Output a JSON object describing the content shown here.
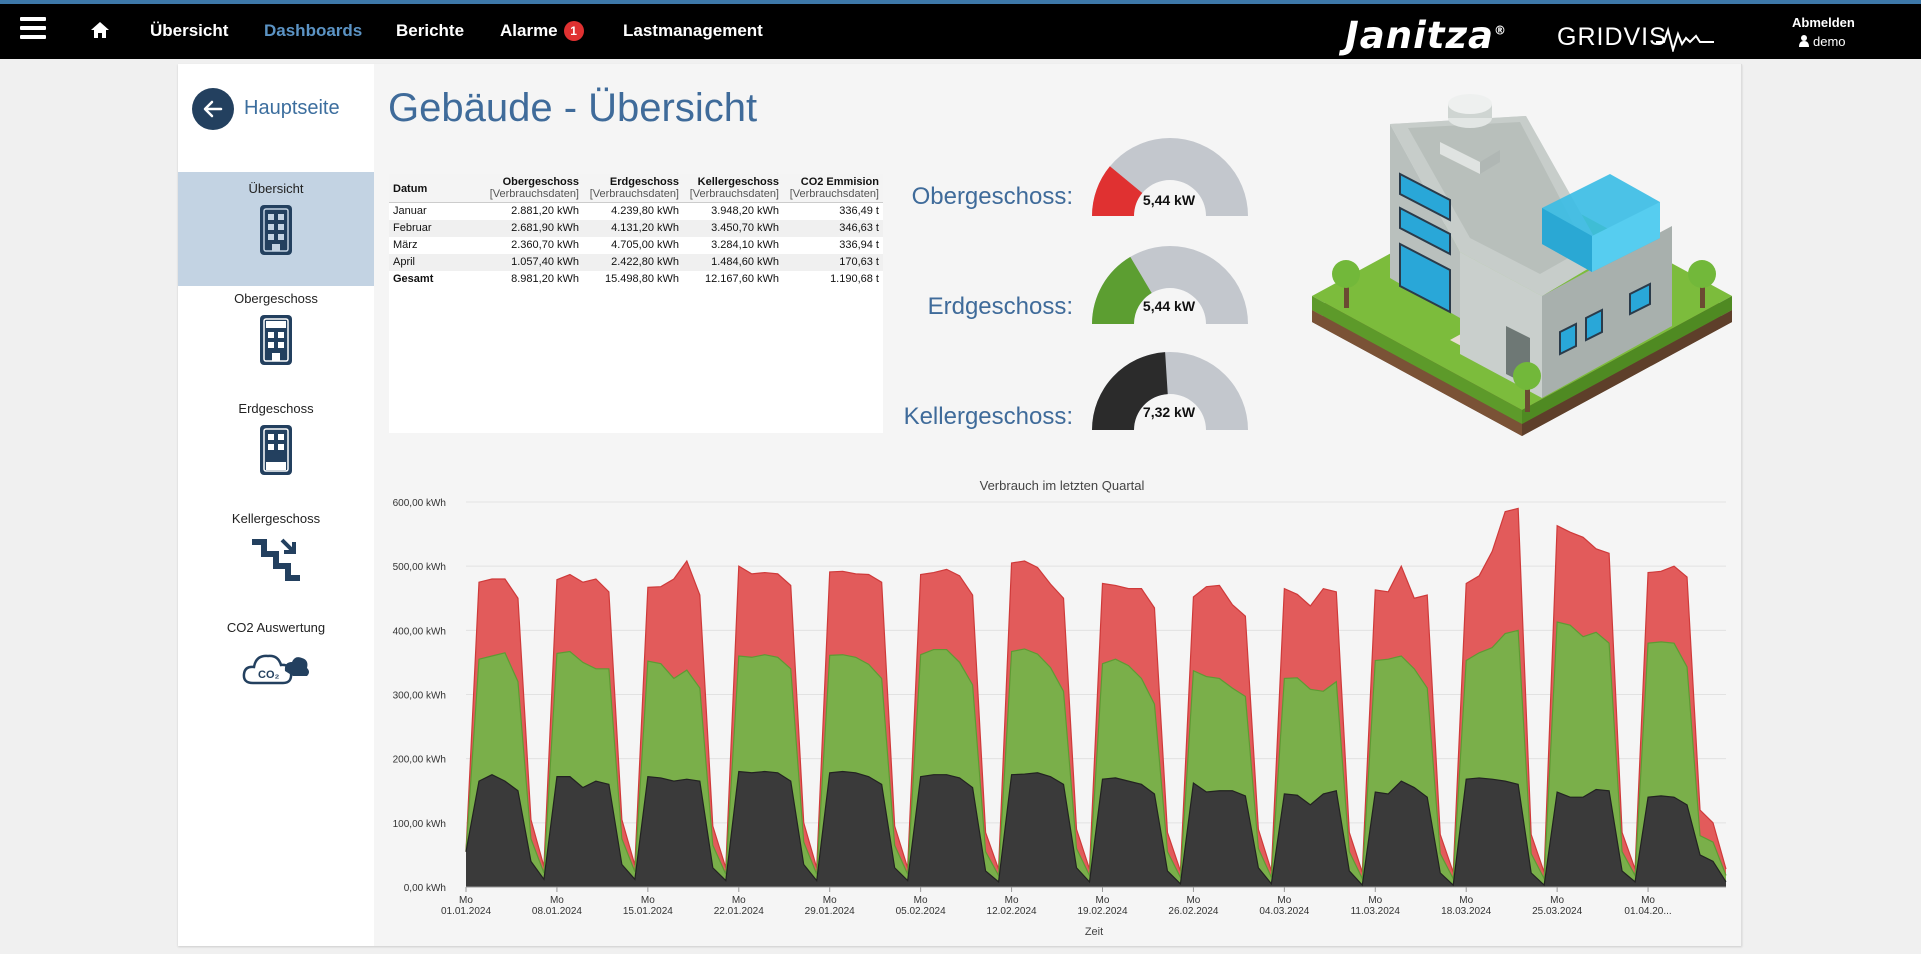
{
  "nav": {
    "items": [
      {
        "label": "Übersicht",
        "active": false
      },
      {
        "label": "Dashboards",
        "active": true
      },
      {
        "label": "Berichte",
        "active": false
      },
      {
        "label": "Alarme",
        "active": false,
        "badge": "1"
      },
      {
        "label": "Lastmanagement",
        "active": false
      }
    ],
    "brand": "Janitza",
    "brand_mark": "®",
    "product": "GRIDVIS",
    "logout": "Abmelden",
    "user": "demo"
  },
  "sidebar": {
    "back_label": "Hauptseite",
    "items": [
      {
        "label": "Übersicht",
        "active": true,
        "icon": "building-icon"
      },
      {
        "label": "Obergeschoss",
        "active": false,
        "icon": "building-top-floor-icon"
      },
      {
        "label": "Erdgeschoss",
        "active": false,
        "icon": "building-ground-floor-icon"
      },
      {
        "label": "Kellergeschoss",
        "active": false,
        "icon": "stairs-down-icon"
      },
      {
        "label": "CO2 Auswertung",
        "active": false,
        "icon": "co2-cloud-icon"
      }
    ]
  },
  "page_title": "Gebäude - Übersicht",
  "table": {
    "headers": [
      "Datum",
      "Obergeschoss",
      "Erdgeschoss",
      "Kellergeschoss",
      "CO2 Emmision"
    ],
    "subheader": "[Verbrauchsdaten]",
    "rows": [
      [
        "Januar",
        "2.881,20 kWh",
        "4.239,80 kWh",
        "3.948,20 kWh",
        "336,49 t"
      ],
      [
        "Februar",
        "2.681,90 kWh",
        "4.131,20 kWh",
        "3.450,70 kWh",
        "346,63 t"
      ],
      [
        "März",
        "2.360,70 kWh",
        "4.705,00 kWh",
        "3.284,10 kWh",
        "336,94 t"
      ],
      [
        "April",
        "1.057,40 kWh",
        "2.422,80 kWh",
        "1.484,60 kWh",
        "170,63 t"
      ]
    ],
    "total": [
      "Gesamt",
      "8.981,20 kWh",
      "15.498,80 kWh",
      "12.167,60 kWh",
      "1.190,68 t"
    ]
  },
  "gauges": [
    {
      "label": "Obergeschoss:",
      "value": "5,44 kW",
      "fraction": 0.22,
      "color": "#e03131"
    },
    {
      "label": "Erdgeschoss:",
      "value": "5,44 kW",
      "fraction": 0.33,
      "color": "#5c9e31"
    },
    {
      "label": "Kellergeschoss:",
      "value": "7,32 kW",
      "fraction": 0.48,
      "color": "#2b2b2b"
    }
  ],
  "chart_data": {
    "type": "area",
    "title": "Verbrauch im letzten Quartal",
    "xlabel": "Zeit",
    "ylabel": "",
    "ylim": [
      0,
      600
    ],
    "yticks": [
      "0,00 kWh",
      "100,00 kWh",
      "200,00 kWh",
      "300,00 kWh",
      "400,00 kWh",
      "500,00 kWh",
      "600,00 kWh"
    ],
    "xticks": [
      {
        "day": "Mo",
        "date": "01.01.2024"
      },
      {
        "day": "Mo",
        "date": "08.01.2024"
      },
      {
        "day": "Mo",
        "date": "15.01.2024"
      },
      {
        "day": "Mo",
        "date": "22.01.2024"
      },
      {
        "day": "Mo",
        "date": "29.01.2024"
      },
      {
        "day": "Mo",
        "date": "05.02.2024"
      },
      {
        "day": "Mo",
        "date": "12.02.2024"
      },
      {
        "day": "Mo",
        "date": "19.02.2024"
      },
      {
        "day": "Mo",
        "date": "26.02.2024"
      },
      {
        "day": "Mo",
        "date": "04.03.2024"
      },
      {
        "day": "Mo",
        "date": "11.03.2024"
      },
      {
        "day": "Mo",
        "date": "18.03.2024"
      },
      {
        "day": "Mo",
        "date": "25.03.2024"
      },
      {
        "day": "Mo",
        "date": "01.04.20..."
      }
    ],
    "x_start": "2024-01-01",
    "x_step": "1 Tag",
    "stacked": true,
    "series": [
      {
        "color": "#3a3a3a",
        "values": [
          55,
          165,
          175,
          165,
          150,
          40,
          12,
          172,
          172,
          155,
          165,
          160,
          35,
          12,
          172,
          170,
          165,
          168,
          165,
          30,
          10,
          180,
          178,
          180,
          178,
          165,
          35,
          10,
          178,
          180,
          178,
          172,
          160,
          30,
          10,
          172,
          175,
          175,
          170,
          155,
          25,
          8,
          175,
          176,
          178,
          172,
          160,
          30,
          8,
          168,
          170,
          165,
          160,
          145,
          25,
          5,
          162,
          148,
          150,
          150,
          142,
          30,
          5,
          145,
          143,
          128,
          145,
          150,
          25,
          3,
          148,
          145,
          165,
          155,
          140,
          22,
          3,
          168,
          170,
          168,
          165,
          160,
          22,
          3,
          148,
          140,
          140,
          152,
          150,
          25,
          8,
          140,
          142,
          140,
          128,
          50,
          40,
          8
        ]
      },
      {
        "color": "#7aaf4a",
        "values": [
          0,
          190,
          185,
          200,
          170,
          35,
          10,
          192,
          195,
          195,
          175,
          180,
          40,
          12,
          180,
          178,
          160,
          170,
          145,
          35,
          10,
          180,
          180,
          182,
          180,
          175,
          35,
          10,
          183,
          182,
          180,
          175,
          165,
          35,
          10,
          190,
          195,
          195,
          180,
          160,
          30,
          10,
          192,
          195,
          185,
          170,
          145,
          30,
          10,
          180,
          185,
          180,
          165,
          140,
          30,
          10,
          175,
          180,
          175,
          160,
          155,
          30,
          10,
          180,
          183,
          180,
          160,
          170,
          30,
          10,
          205,
          210,
          195,
          185,
          170,
          30,
          10,
          185,
          195,
          205,
          230,
          240,
          30,
          10,
          265,
          268,
          250,
          245,
          230,
          30,
          10,
          240,
          240,
          240,
          215,
          30,
          30,
          10
        ]
      },
      {
        "color": "#e25b5b",
        "values": [
          0,
          120,
          120,
          115,
          130,
          30,
          10,
          115,
          120,
          125,
          140,
          120,
          30,
          10,
          115,
          120,
          155,
          170,
          145,
          30,
          10,
          140,
          130,
          128,
          130,
          130,
          30,
          10,
          130,
          130,
          130,
          140,
          150,
          30,
          10,
          125,
          120,
          125,
          135,
          140,
          30,
          10,
          138,
          137,
          135,
          130,
          145,
          30,
          10,
          125,
          115,
          120,
          140,
          150,
          30,
          10,
          115,
          140,
          145,
          130,
          125,
          30,
          10,
          140,
          130,
          130,
          160,
          140,
          30,
          10,
          110,
          105,
          140,
          110,
          145,
          30,
          10,
          120,
          120,
          150,
          190,
          190,
          30,
          10,
          150,
          145,
          155,
          130,
          140,
          30,
          10,
          110,
          110,
          120,
          140,
          40,
          30,
          10
        ]
      }
    ]
  }
}
